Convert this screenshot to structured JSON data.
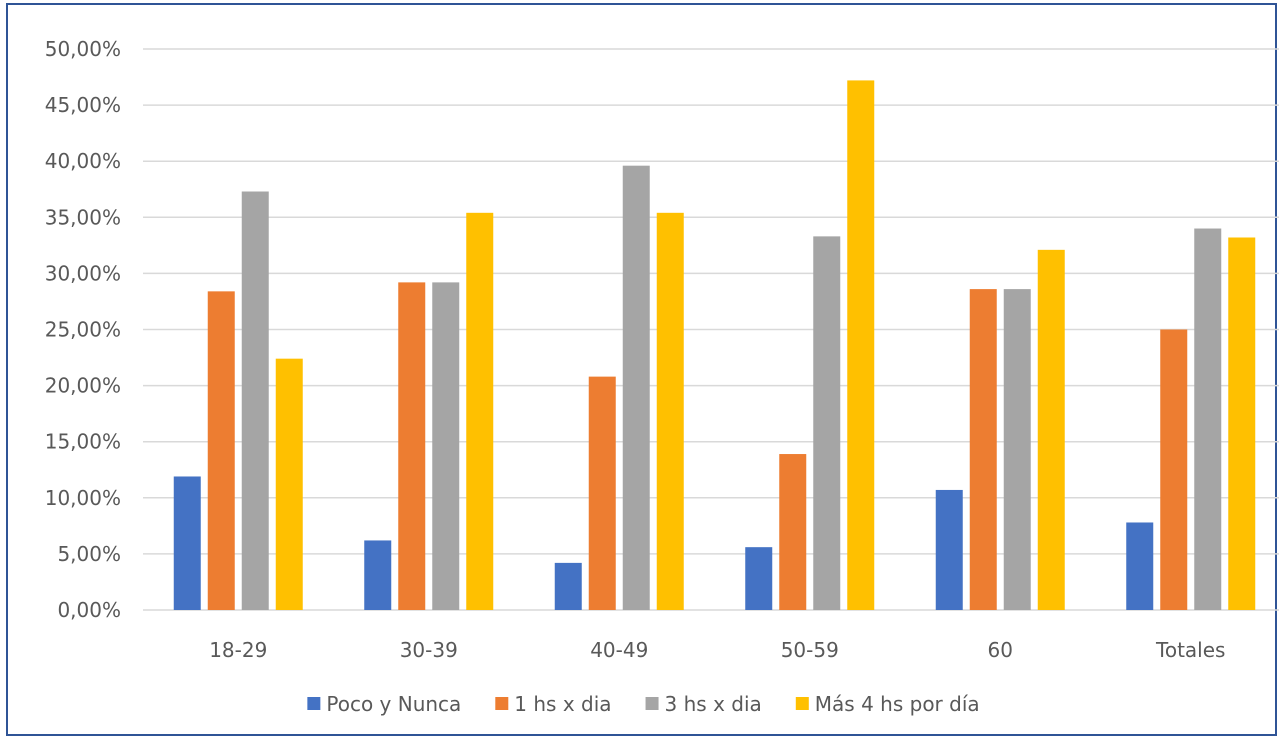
{
  "chart_data": {
    "type": "bar",
    "title": "",
    "xlabel": "",
    "ylabel": "",
    "ylim": [
      0,
      0.5
    ],
    "y_tick_step": 0.05,
    "y_tick_labels": [
      "0,00%",
      "5,00%",
      "10,00%",
      "15,00%",
      "20,00%",
      "25,00%",
      "30,00%",
      "35,00%",
      "40,00%",
      "45,00%",
      "50,00%"
    ],
    "grid": true,
    "legend_position": "bottom",
    "categories": [
      "18-29",
      "30-39",
      "40-49",
      "50-59",
      "60",
      "Totales"
    ],
    "series": [
      {
        "name": "Poco y Nunca",
        "color": "#4472c4",
        "values": [
          0.119,
          0.062,
          0.042,
          0.056,
          0.107,
          0.078
        ]
      },
      {
        "name": "1 hs x dia",
        "color": "#ed7d31",
        "values": [
          0.284,
          0.292,
          0.208,
          0.139,
          0.286,
          0.25
        ]
      },
      {
        "name": "3 hs x dia",
        "color": "#a5a5a5",
        "values": [
          0.373,
          0.292,
          0.396,
          0.333,
          0.286,
          0.34
        ]
      },
      {
        "name": "Más 4 hs por día",
        "color": "#ffc000",
        "values": [
          0.224,
          0.354,
          0.354,
          0.472,
          0.321,
          0.332
        ]
      }
    ]
  }
}
